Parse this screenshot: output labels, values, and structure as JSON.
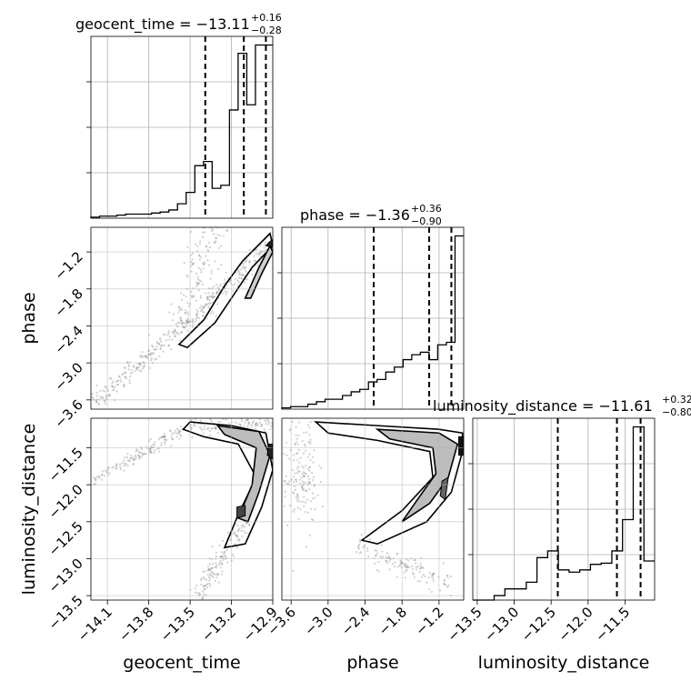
{
  "chart_data": {
    "type": "corner",
    "parameters": [
      "geocent_time",
      "phase",
      "luminosity_distance"
    ],
    "titles": [
      {
        "text": "geocent_time = −13.11",
        "plus": "+0.16",
        "minus": "−0.28"
      },
      {
        "text": "phase = −1.36",
        "plus": "+0.36",
        "minus": "−0.90"
      },
      {
        "text": "luminosity_distance = −11.61",
        "plus": "+0.32",
        "minus": "−0.80"
      }
    ],
    "ranges": {
      "geocent_time": [
        -14.22,
        -12.9
      ],
      "phase": [
        -3.75,
        -0.8
      ],
      "luminosity_distance": [
        -13.56,
        -11.1
      ]
    },
    "ticks": {
      "geocent_time": {
        "values": [
          -14.1,
          -13.8,
          -13.5,
          -13.2,
          -12.9
        ],
        "labels": [
          "−14.1",
          "−13.8",
          "−13.5",
          "−13.2",
          "−12.9"
        ]
      },
      "phase": {
        "values": [
          -3.6,
          -3.0,
          -2.4,
          -1.8,
          -1.2
        ],
        "labels": [
          "−3.6",
          "−3.0",
          "−2.4",
          "−1.8",
          "−1.2"
        ]
      },
      "luminosity_distance": {
        "values": [
          -13.5,
          -13.0,
          -12.5,
          -12.0,
          -11.5
        ],
        "labels": [
          "−13.5",
          "−13.0",
          "−12.5",
          "−12.0",
          "−11.5"
        ]
      }
    },
    "quantiles": {
      "geocent_time": [
        -13.39,
        -13.11,
        -12.95
      ],
      "phase": [
        -2.26,
        -1.36,
        -1.0
      ],
      "luminosity_distance": [
        -12.41,
        -11.61,
        -11.29
      ]
    },
    "histograms": {
      "geocent_time": [
        1,
        2,
        2,
        3,
        4,
        4,
        4,
        5,
        6,
        8,
        14,
        25,
        51,
        55,
        29,
        32,
        105,
        160,
        110,
        168,
        168
      ],
      "phase": [
        1,
        2,
        2,
        4,
        6,
        8,
        8,
        11,
        14,
        16,
        22,
        24,
        30,
        34,
        40,
        44,
        46,
        40,
        52,
        54,
        140
      ],
      "luminosity_distance": [
        0,
        0,
        4,
        10,
        10,
        16,
        38,
        44,
        27,
        25,
        27,
        32,
        33,
        44,
        72,
        155,
        35
      ]
    },
    "grid": true,
    "contours": true
  }
}
